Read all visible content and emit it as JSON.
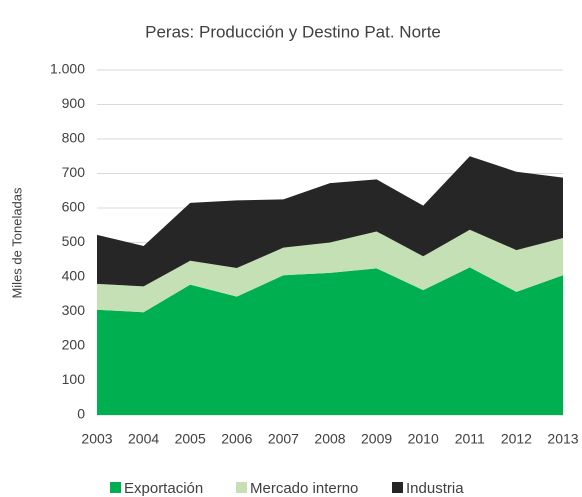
{
  "chart_data": {
    "type": "stacked_area",
    "title": "Peras: Producción y Destino Pat. Norte",
    "y_label": "Miles de Toneladas",
    "categories": [
      "2003",
      "2004",
      "2005",
      "2006",
      "2007",
      "2008",
      "2009",
      "2010",
      "2011",
      "2012",
      "2013"
    ],
    "series": [
      {
        "name": "Exportación",
        "color": "#00b050",
        "values": [
          305,
          298,
          378,
          343,
          405,
          412,
          425,
          362,
          428,
          357,
          405
        ]
      },
      {
        "name": "Mercado interno",
        "color": "#c5e0b4",
        "values": [
          75,
          75,
          69,
          83,
          80,
          88,
          107,
          98,
          109,
          121,
          108
        ]
      },
      {
        "name": "Industria",
        "color": "#262626",
        "values": [
          142,
          117,
          168,
          196,
          140,
          172,
          151,
          147,
          213,
          227,
          175
        ]
      }
    ],
    "ylim": [
      0,
      1000
    ],
    "yticks": [
      0,
      100,
      200,
      300,
      400,
      500,
      600,
      700,
      800,
      900,
      {
        "value": 1000,
        "label": "1.000"
      }
    ],
    "grid": true,
    "legend": "bottom"
  }
}
